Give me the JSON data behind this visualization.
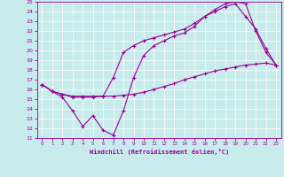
{
  "xlabel": "Windchill (Refroidissement éolien,°C)",
  "bg_color": "#c8ecec",
  "line_color": "#990099",
  "grid_color": "#aad4d4",
  "xlim": [
    -0.5,
    23.5
  ],
  "ylim": [
    11,
    25
  ],
  "xticks": [
    0,
    1,
    2,
    3,
    4,
    5,
    6,
    7,
    8,
    9,
    10,
    11,
    12,
    13,
    14,
    15,
    16,
    17,
    18,
    19,
    20,
    21,
    22,
    23
  ],
  "yticks": [
    11,
    12,
    13,
    14,
    15,
    16,
    17,
    18,
    19,
    20,
    21,
    22,
    23,
    24,
    25
  ],
  "line1_x": [
    0,
    1,
    2,
    3,
    4,
    5,
    6,
    7,
    8,
    9,
    10,
    11,
    12,
    13,
    14,
    15,
    16,
    17,
    18,
    19,
    20,
    21,
    22,
    23
  ],
  "line1_y": [
    16.5,
    15.8,
    15.5,
    15.3,
    15.3,
    15.3,
    15.3,
    15.3,
    15.4,
    15.5,
    15.7,
    16.0,
    16.3,
    16.6,
    17.0,
    17.3,
    17.6,
    17.9,
    18.1,
    18.3,
    18.5,
    18.6,
    18.7,
    18.5
  ],
  "line2_x": [
    0,
    1,
    2,
    3,
    4,
    5,
    6,
    7,
    8,
    9,
    10,
    11,
    12,
    13,
    14,
    15,
    16,
    17,
    18,
    19,
    20,
    21,
    22,
    23
  ],
  "line2_y": [
    16.5,
    15.8,
    15.2,
    13.8,
    12.2,
    13.3,
    11.8,
    11.3,
    13.8,
    17.2,
    19.5,
    20.5,
    21.0,
    21.5,
    21.8,
    22.5,
    23.5,
    24.2,
    24.8,
    25.0,
    24.8,
    22.0,
    19.8,
    18.5
  ],
  "line3_x": [
    0,
    1,
    2,
    3,
    4,
    5,
    6,
    7,
    8,
    9,
    10,
    11,
    12,
    13,
    14,
    15,
    16,
    17,
    18,
    19,
    20,
    21,
    22,
    23
  ],
  "line3_y": [
    16.5,
    15.8,
    15.5,
    15.2,
    15.2,
    15.2,
    15.3,
    17.2,
    19.8,
    20.5,
    21.0,
    21.3,
    21.6,
    21.9,
    22.2,
    22.8,
    23.5,
    24.0,
    24.5,
    24.8,
    23.5,
    22.2,
    20.2,
    18.5
  ]
}
